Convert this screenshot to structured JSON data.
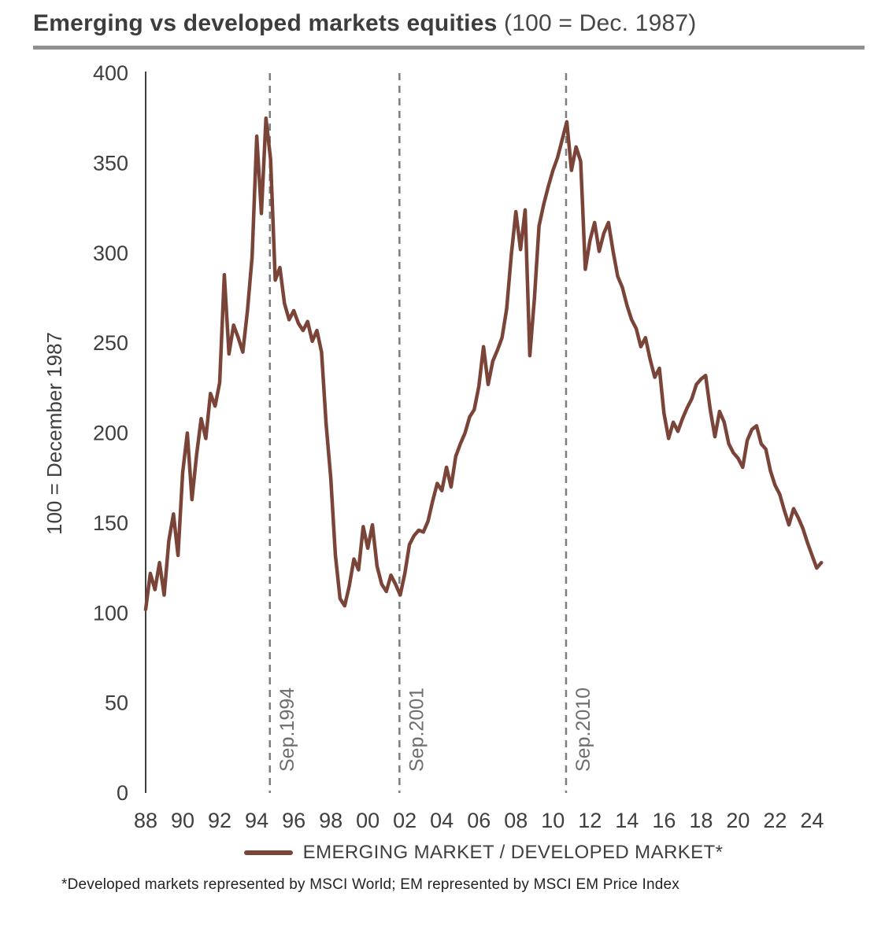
{
  "title": {
    "main": "Emerging vs developed markets equities",
    "suffix": "(100 = Dec. 1987)"
  },
  "legend": {
    "label": "EMERGING MARKET / DEVELOPED MARKET*"
  },
  "footnote": "*Developed markets represented by MSCI World; EM represented by MSCI EM Price Index",
  "colors": {
    "series": "#7a4538",
    "dashed": "#7d7d7d",
    "axis": "#3f3f3f",
    "annotation": "#6e6e6e"
  },
  "chart_data": {
    "type": "line",
    "title": "Emerging vs developed markets equities (100 = Dec. 1987)",
    "xlabel": "",
    "ylabel": "100 = December 1987",
    "xlim": [
      1988,
      2025.3
    ],
    "ylim": [
      0,
      400
    ],
    "grid": false,
    "legend_position": "bottom",
    "y_ticks": [
      0,
      50,
      100,
      150,
      200,
      250,
      300,
      350,
      400
    ],
    "x_ticks": {
      "start": 1988,
      "step": 2,
      "labels": [
        "88",
        "90",
        "92",
        "94",
        "96",
        "98",
        "00",
        "02",
        "04",
        "06",
        "08",
        "10",
        "12",
        "14",
        "16",
        "18",
        "20",
        "22",
        "24"
      ]
    },
    "annotations": [
      {
        "x": 1994.71,
        "label": "Sep.1994"
      },
      {
        "x": 2001.71,
        "label": "Sep.2001"
      },
      {
        "x": 2010.71,
        "label": "Sep.2010"
      }
    ],
    "series": [
      {
        "name": "EMERGING MARKET / DEVELOPED MARKET*",
        "x_start": 1988.0,
        "x_step": 0.25,
        "values": [
          102,
          122,
          113,
          128,
          110,
          140,
          155,
          132,
          178,
          200,
          163,
          188,
          208,
          197,
          222,
          215,
          228,
          288,
          244,
          260,
          253,
          245,
          268,
          298,
          365,
          322,
          375,
          352,
          285,
          292,
          272,
          263,
          268,
          261,
          257,
          262,
          251,
          257,
          245,
          205,
          175,
          132,
          108,
          104,
          115,
          130,
          124,
          148,
          136,
          149,
          126,
          116,
          112,
          121,
          116,
          110,
          122,
          138,
          143,
          146,
          145,
          151,
          162,
          172,
          168,
          181,
          170,
          187,
          194,
          200,
          209,
          213,
          226,
          248,
          227,
          240,
          246,
          253,
          269,
          299,
          323,
          302,
          324,
          243,
          275,
          315,
          327,
          337,
          346,
          353,
          363,
          373,
          346,
          359,
          351,
          291,
          307,
          317,
          301,
          311,
          317,
          301,
          287,
          281,
          271,
          263,
          258,
          248,
          253,
          241,
          231,
          236,
          211,
          197,
          206,
          201,
          208,
          214,
          219,
          227,
          230,
          232,
          213,
          198,
          212,
          206,
          194,
          189,
          186,
          181,
          196,
          202,
          204,
          194,
          191,
          179,
          171,
          166,
          157,
          149,
          158,
          153,
          147,
          139,
          132,
          125,
          128
        ]
      }
    ]
  }
}
